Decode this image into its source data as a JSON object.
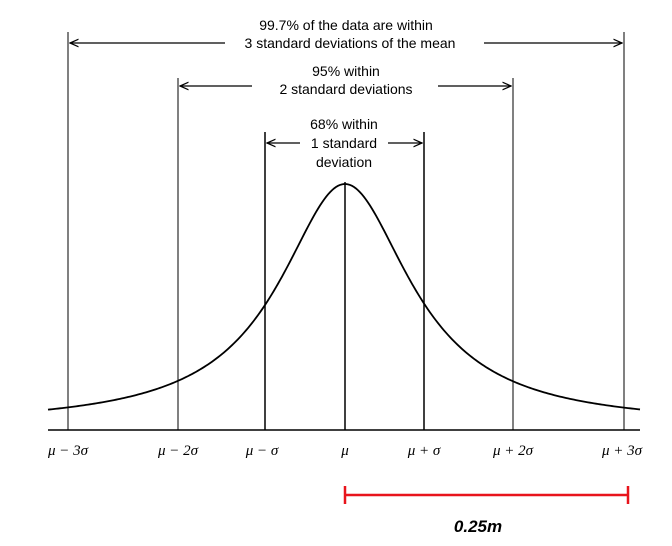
{
  "annotations": {
    "sigma3": {
      "line1": "99.7% of the data are within",
      "line2": "3 standard deviations of the mean"
    },
    "sigma2": {
      "line1": "95% within",
      "line2": "2 standard deviations"
    },
    "sigma1": {
      "line1": "68% within",
      "line2": "1 standard",
      "line3": "deviation"
    }
  },
  "axis_labels": [
    "μ − 3σ",
    "μ − 2σ",
    "μ − σ",
    "μ",
    "μ + σ",
    "μ + 2σ",
    "μ + 3σ"
  ],
  "scale_bar": {
    "label": "0.25m",
    "color": "#e8141c"
  }
}
